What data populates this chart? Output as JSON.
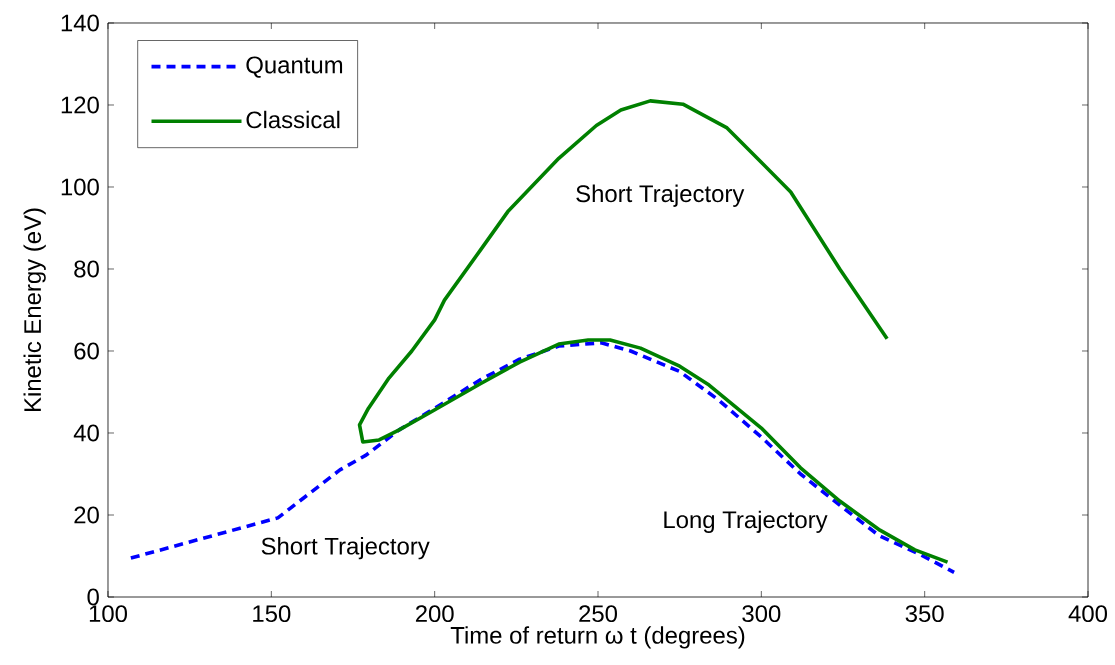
{
  "chart_data": {
    "type": "line",
    "xlabel": "Time of return ω t (degrees)",
    "ylabel": "Kinetic Energy (eV)",
    "xlim": [
      100,
      400
    ],
    "ylim": [
      0,
      140
    ],
    "xticks": [
      100,
      150,
      200,
      250,
      300,
      350,
      400
    ],
    "yticks": [
      0,
      20,
      40,
      60,
      80,
      100,
      120,
      140
    ],
    "legend": "top left",
    "marker": "none",
    "series": [
      {
        "name": "Quantum",
        "color": "#0000ff",
        "line_style": "dashed",
        "x": [
          107,
          152,
          171,
          179,
          189,
          202,
          214,
          226,
          238,
          251,
          260,
          275,
          287,
          300,
          312,
          324,
          336,
          349,
          359
        ],
        "values": [
          9.5,
          19.3,
          31,
          34.6,
          40.7,
          47,
          53,
          58,
          61.2,
          62,
          60,
          55,
          48,
          39,
          30,
          22.4,
          15,
          10.2,
          6
        ]
      },
      {
        "name": "Classical",
        "color": "#008000",
        "line_style": "solid",
        "x": [
          338.5,
          324,
          309,
          289.5,
          276,
          266,
          257,
          249.5,
          238,
          222.4,
          214,
          203,
          200,
          193,
          186,
          179.7,
          177,
          178,
          183,
          189,
          198.6,
          214,
          226,
          238,
          247,
          253.7,
          263,
          275,
          284,
          300,
          312,
          324,
          336.3,
          347,
          357
        ],
        "values": [
          63,
          80,
          98.8,
          114.4,
          120.2,
          121,
          118.8,
          115,
          107,
          94,
          84.6,
          72.4,
          67.6,
          60,
          53.4,
          46,
          42,
          37.8,
          38.3,
          40.7,
          45,
          52,
          57.3,
          61.7,
          62.7,
          62.7,
          60.7,
          56.3,
          51.7,
          41.2,
          31.5,
          23.4,
          16.3,
          11.5,
          8.5
        ]
      }
    ],
    "annotations": [
      "Short Trajectory",
      "Short Trajectory",
      "Long Trajectory"
    ]
  }
}
